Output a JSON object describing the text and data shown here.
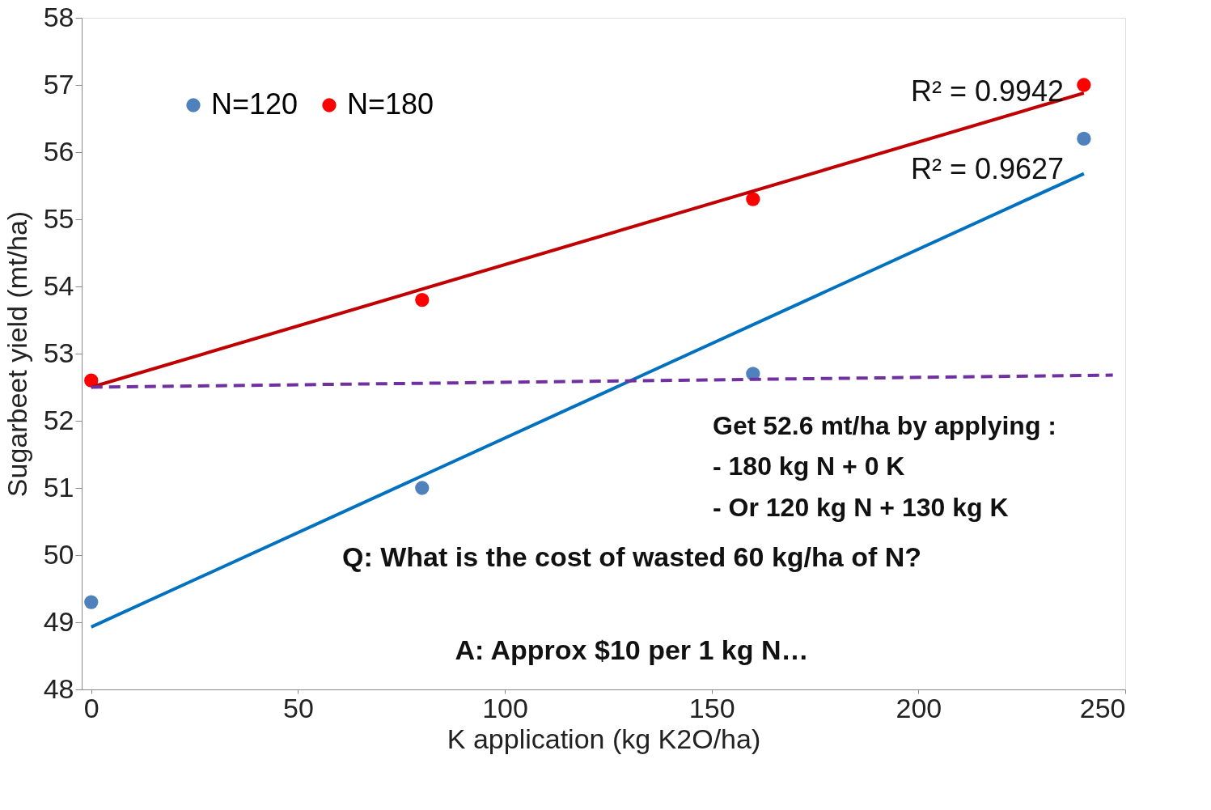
{
  "chart_data": {
    "type": "scatter",
    "xlabel": "K application (kg K2O/ha)",
    "ylabel": "Sugarbeet yield (mt/ha)",
    "xlim": [
      -2.3,
      250
    ],
    "xticks": [
      0,
      50,
      100,
      150,
      200,
      250
    ],
    "ylim": [
      48,
      58
    ],
    "yticks": [
      48,
      49,
      50,
      51,
      52,
      53,
      54,
      55,
      56,
      57,
      58
    ],
    "grid": false,
    "legend": "top left",
    "series": [
      {
        "name": "N=120",
        "color": "#4f81bd",
        "x": [
          0,
          80,
          160,
          240
        ],
        "values": [
          49.3,
          51.0,
          52.7,
          56.2
        ],
        "marker": "circle"
      },
      {
        "name": "N=180",
        "color": "#ff0000",
        "x": [
          0,
          80,
          160,
          240
        ],
        "values": [
          52.6,
          53.8,
          55.3,
          57.0
        ],
        "marker": "circle"
      },
      {
        "type": "line",
        "color": "#0070c0",
        "x": [
          0,
          240
        ],
        "values": [
          48.93,
          55.68
        ],
        "line_style": "solid",
        "marker": "none"
      },
      {
        "type": "line",
        "color": "#c00000",
        "x": [
          0,
          240
        ],
        "values": [
          52.5,
          56.88
        ],
        "line_style": "solid",
        "marker": "none"
      },
      {
        "type": "line",
        "color": "#7030a0",
        "x": [
          0,
          247
        ],
        "values": [
          52.5,
          52.68
        ],
        "line_style": "dashed",
        "marker": "none"
      }
    ],
    "annotations": [
      "R² = 0.9942",
      "R² = 0.9627",
      "Get 52.6 mt/ha by applying :",
      "-   180 kg N + 0 K",
      "-   Or 120 kg N + 130 kg K",
      "Q: What is the cost of wasted 60 kg/ha of N?",
      "A: Approx $10 per 1 kg N…"
    ]
  }
}
